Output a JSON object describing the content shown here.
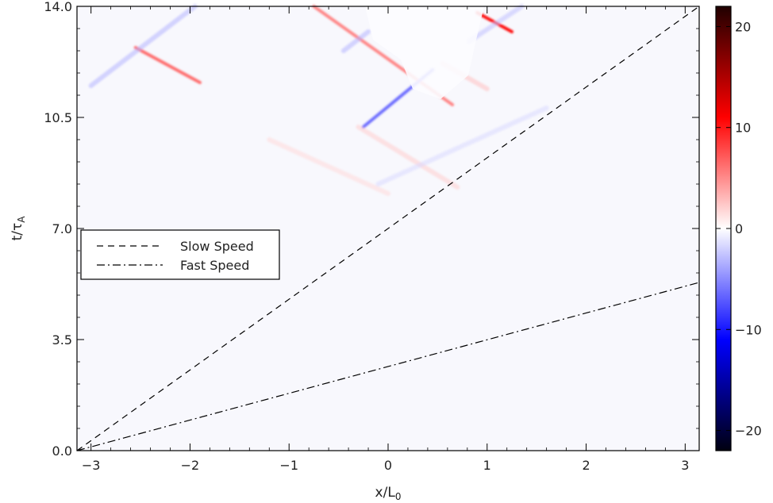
{
  "chart_data": {
    "type": "heatmap",
    "title": "",
    "xlabel": {
      "main": "x/L",
      "sub": "0"
    },
    "ylabel": {
      "main": "t/τ",
      "sub": "A"
    },
    "xlim": [
      -3.1416,
      3.1416
    ],
    "ylim": [
      0.0,
      14.0
    ],
    "x_ticks": [
      -3,
      -2,
      -1,
      0,
      1,
      2,
      3
    ],
    "x_tick_labels": [
      "−3",
      "−2",
      "−1",
      "0",
      "1",
      "2",
      "3"
    ],
    "y_ticks": [
      0.0,
      3.5,
      7.0,
      10.5,
      14.0
    ],
    "y_tick_labels": [
      "0.0",
      "3.5",
      "7.0",
      "10.5",
      "14.0"
    ],
    "colorbar": {
      "range": [
        -22,
        22
      ],
      "ticks": [
        -20,
        -10,
        0,
        10,
        20
      ],
      "tick_labels": [
        "−20",
        "−10",
        "0",
        "10",
        "20"
      ],
      "colors": [
        "#000010",
        "#0000ff",
        "#ffffff",
        "#ff0000",
        "#200000"
      ]
    },
    "lines": [
      {
        "name": "Slow Speed",
        "style": "dashed",
        "points": [
          [
            -3.1416,
            0.0
          ],
          [
            3.1416,
            14.0
          ]
        ]
      },
      {
        "name": "Fast Speed",
        "style": "dashdot",
        "points": [
          [
            -3.1416,
            0.0
          ],
          [
            3.1416,
            5.3
          ]
        ]
      }
    ],
    "features": [
      {
        "sign": "positive",
        "amplitude": 12,
        "from": [
          -2.55,
          12.7
        ],
        "to": [
          -1.9,
          11.6
        ]
      },
      {
        "sign": "negative",
        "amplitude": 6,
        "from": [
          -3.0,
          11.5
        ],
        "to": [
          -1.95,
          14.0
        ]
      },
      {
        "sign": "positive",
        "amplitude": 10,
        "from": [
          -0.75,
          14.0
        ],
        "to": [
          0.65,
          10.9
        ]
      },
      {
        "sign": "negative",
        "amplitude": 12,
        "from": [
          -0.25,
          10.2
        ],
        "to": [
          0.45,
          12.0
        ]
      },
      {
        "sign": "positive",
        "amplitude": 5,
        "from": [
          0.55,
          12.2
        ],
        "to": [
          1.0,
          11.4
        ]
      },
      {
        "sign": "positive",
        "amplitude": 20,
        "from": [
          0.9,
          13.8
        ],
        "to": [
          1.25,
          13.2
        ]
      },
      {
        "sign": "negative",
        "amplitude": 5,
        "from": [
          0.82,
          12.9
        ],
        "to": [
          1.35,
          14.0
        ]
      },
      {
        "sign": "negative",
        "amplitude": 6,
        "from": [
          -0.45,
          12.6
        ],
        "to": [
          -0.2,
          13.2
        ]
      },
      {
        "sign": "positive",
        "amplitude": 4,
        "from": [
          -0.3,
          10.2
        ],
        "to": [
          0.7,
          8.3
        ]
      },
      {
        "sign": "negative",
        "amplitude": 3,
        "from": [
          -0.1,
          8.4
        ],
        "to": [
          1.6,
          10.8
        ]
      },
      {
        "sign": "positive",
        "amplitude": 3,
        "from": [
          -1.2,
          9.8
        ],
        "to": [
          0.0,
          8.1
        ]
      }
    ],
    "legend": {
      "placement": "middle-left",
      "entries": [
        {
          "label": "Slow Speed",
          "style": "dashed"
        },
        {
          "label": "Fast Speed",
          "style": "dashdot"
        }
      ]
    }
  }
}
